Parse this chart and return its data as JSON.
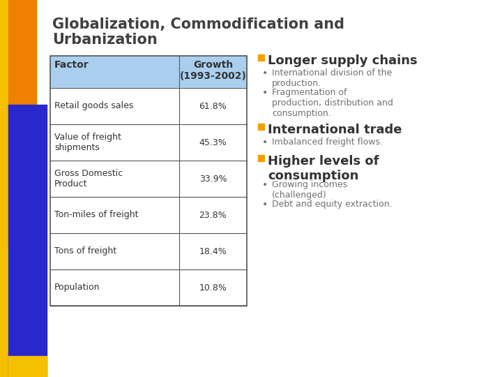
{
  "title_line1": "Globalization, Commodification and",
  "title_line2": "Urbanization",
  "background_color": "#ffffff",
  "orange_color": "#f5a000",
  "blue_color": "#3030c0",
  "table_header": [
    "Factor",
    "Growth\n(1993-2002)"
  ],
  "table_rows": [
    [
      "Retail goods sales",
      "61.8%"
    ],
    [
      "Value of freight\nshipments",
      "45.3%"
    ],
    [
      "Gross Domestic\nProduct",
      "33.9%"
    ],
    [
      "Ton-miles of freight",
      "23.8%"
    ],
    [
      "Tons of freight",
      "18.4%"
    ],
    [
      "Population",
      "10.8%"
    ]
  ],
  "table_header_bg": "#aacfee",
  "table_border_color": "#555555",
  "bullet_color": "#f5a000",
  "bullet_sections": [
    {
      "header": "Longer supply chains",
      "bullets": [
        "International division of the\nproduction.",
        "Fragmentation of\nproduction, distribution and\nconsumption."
      ]
    },
    {
      "header": "International trade",
      "bullets": [
        "Imbalanced freight flows."
      ]
    },
    {
      "header": "Higher levels of\nconsumption",
      "bullets": [
        "Growing incomes\n(challenged)",
        "Debt and equity extraction."
      ]
    }
  ],
  "title_color": "#404040",
  "text_color": "#707070",
  "table_text_color": "#333333",
  "title_fontsize": 15,
  "table_fontsize": 9,
  "bullet_header_fontsize": 13,
  "bullet_text_fontsize": 9
}
